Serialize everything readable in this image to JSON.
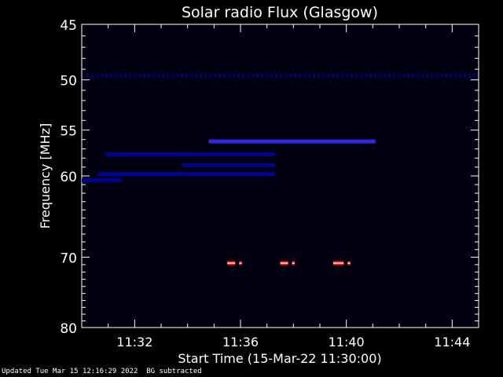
{
  "chart_data": {
    "type": "heatmap",
    "title": "Solar radio Flux (Glasgow)",
    "xlabel": "Start Time (15-Mar-22 11:30:00)",
    "ylabel": "Frequency [MHz]",
    "x_unit": "minutes after 11:30:00",
    "xlim": [
      0,
      15
    ],
    "ylim": [
      45,
      80
    ],
    "y_scale": "log",
    "y_inverted": true,
    "xticks": [
      2,
      6,
      10,
      14
    ],
    "xtick_labels": [
      "11:32",
      "11:36",
      "11:40",
      "11:44"
    ],
    "yticks": [
      45,
      50,
      55,
      60,
      70,
      80
    ],
    "ytick_labels": [
      "45",
      "50",
      "55",
      "60",
      "70",
      "80"
    ],
    "colors": {
      "background": "#000000",
      "low": "#0000a0",
      "mid": "#3a2cff",
      "high": "#ff1a1a"
    },
    "features": [
      {
        "kind": "persistent line",
        "freq_mhz": 49.6,
        "t_start": 0.2,
        "t_end": 14.9,
        "intensity": "low"
      },
      {
        "kind": "band",
        "freq_mhz": 56.2,
        "t_start": 4.8,
        "t_end": 11.1,
        "intensity": "mid"
      },
      {
        "kind": "band",
        "freq_mhz": 57.6,
        "t_start": 0.9,
        "t_end": 7.3,
        "intensity": "low"
      },
      {
        "kind": "band",
        "freq_mhz": 58.8,
        "t_start": 3.8,
        "t_end": 7.3,
        "intensity": "low"
      },
      {
        "kind": "band",
        "freq_mhz": 59.8,
        "t_start": 0.6,
        "t_end": 7.3,
        "intensity": "low"
      },
      {
        "kind": "band",
        "freq_mhz": 60.5,
        "t_start": 0.0,
        "t_end": 1.5,
        "intensity": "low"
      },
      {
        "kind": "burst",
        "freq_mhz": 70.8,
        "t_start": 5.5,
        "t_end": 5.8,
        "intensity": "high"
      },
      {
        "kind": "burst",
        "freq_mhz": 70.8,
        "t_start": 5.95,
        "t_end": 6.05,
        "intensity": "high"
      },
      {
        "kind": "burst",
        "freq_mhz": 70.8,
        "t_start": 7.5,
        "t_end": 7.8,
        "intensity": "high"
      },
      {
        "kind": "burst",
        "freq_mhz": 70.8,
        "t_start": 7.95,
        "t_end": 8.05,
        "intensity": "high"
      },
      {
        "kind": "burst",
        "freq_mhz": 70.8,
        "t_start": 9.5,
        "t_end": 9.9,
        "intensity": "high"
      },
      {
        "kind": "burst",
        "freq_mhz": 70.8,
        "t_start": 10.05,
        "t_end": 10.15,
        "intensity": "high"
      }
    ]
  },
  "footer": {
    "updated": "Updated Tue Mar 15 12:16:29 2022",
    "note": "BG subtracted"
  }
}
